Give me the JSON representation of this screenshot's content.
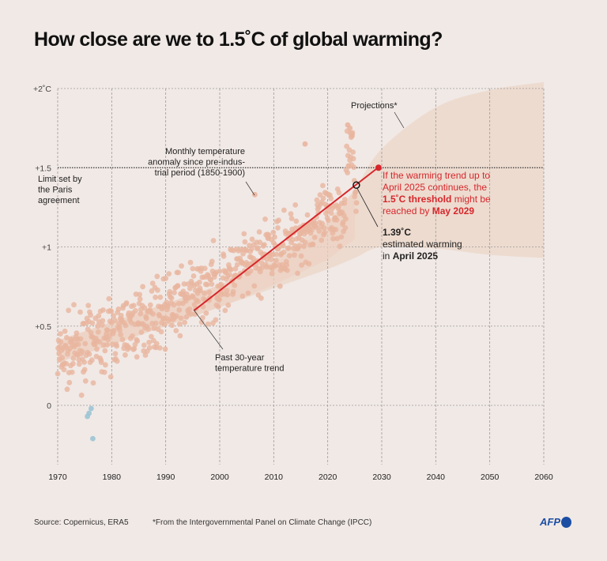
{
  "title": "How close are we to 1.5˚C of global warming?",
  "colors": {
    "background": "#f1e9e6",
    "dot_warm": "#e9b59f",
    "dot_cool": "#9cc4d4",
    "trend_band": "#ecd2c2",
    "projection_band": "#ecdacd",
    "trend_line": "#d7262b",
    "accent_text": "#d7262b",
    "grid": "#9a9a9a",
    "afp_blue": "#1b4ea3"
  },
  "chart_data": {
    "type": "scatter",
    "title": "How close are we to 1.5˚C of global warming?",
    "xlabel": "",
    "ylabel": "",
    "xlim": [
      1970,
      2060
    ],
    "ylim": [
      -0.4,
      2.0
    ],
    "x_ticks": [
      1970,
      1980,
      1990,
      2000,
      2010,
      2020,
      2030,
      2040,
      2050,
      2060
    ],
    "x_tick_labels": [
      "1970",
      "1980",
      "1990",
      "2000",
      "2010",
      "2020",
      "2030",
      "2040",
      "2050",
      "2060"
    ],
    "y_ticks": [
      0,
      0.5,
      1,
      1.5,
      2
    ],
    "y_tick_labels": [
      "0",
      "+0.5",
      "+1",
      "+1.5",
      "+2˚C"
    ],
    "grid": true,
    "threshold": {
      "value": 1.5,
      "label": "Limit set by the Paris agreement"
    },
    "series": [
      {
        "name": "Monthly temperature anomaly since pre-industrial period (1850-1900)",
        "kind": "scatter",
        "note": "Monthly points 1970 – April 2025; anomaly trend rises from ~0.3 (1970) to ~1.3 (2023) with large scatter; 2023-2024 peaks ~1.75; a few values below 0 around 1976 (min ~ -0.2)",
        "trend_start": [
          1970,
          0.3
        ],
        "trend_end": [
          2025.3,
          1.3
        ],
        "spread": 0.17,
        "highlights": [
          {
            "x": 1976.5,
            "y": -0.21
          },
          {
            "x": 1975.8,
            "y": -0.05
          },
          {
            "x": 1976.2,
            "y": -0.02
          },
          {
            "x": 1975.5,
            "y": -0.07
          },
          {
            "x": 2006.5,
            "y": 1.33
          },
          {
            "x": 2015.8,
            "y": 1.65
          },
          {
            "x": 2023.7,
            "y": 1.77
          },
          {
            "x": 2024.1,
            "y": 1.75
          },
          {
            "x": 2024.5,
            "y": 1.7
          }
        ]
      },
      {
        "name": "Past 30-year temperature trend",
        "kind": "line",
        "x": [
          1995.3,
          2029.3
        ],
        "y": [
          0.6,
          1.5
        ]
      },
      {
        "name": "Projections* (IPCC band)",
        "kind": "band",
        "x": [
          1970,
          1980,
          1990,
          2000,
          2010,
          2020,
          2025,
          2030,
          2040,
          2050,
          2060
        ],
        "lower": [
          0.27,
          0.38,
          0.5,
          0.62,
          0.74,
          0.86,
          0.93,
          1.0,
          0.99,
          0.95,
          0.93
        ],
        "upper": [
          0.41,
          0.52,
          0.64,
          0.76,
          0.9,
          1.14,
          1.36,
          1.62,
          1.88,
          1.99,
          2.04
        ]
      }
    ],
    "markers": [
      {
        "name": "April 2025 estimate",
        "x": 2025.3,
        "y": 1.39,
        "style": "open-circle"
      },
      {
        "name": "1.5˚C crossing",
        "x": 2029.4,
        "y": 1.5,
        "style": "filled-red"
      }
    ]
  },
  "annotations": {
    "monthly": [
      "Monthly temperature",
      "anomaly since pre-indus-",
      "trial period (1850-1900)"
    ],
    "projections": "Projections*",
    "paris": [
      "Limit set by",
      "the Paris",
      "agreement"
    ],
    "trend": [
      "Past 30-year",
      "temperature trend"
    ],
    "threshold_lines": [
      [
        {
          "t": "If the warming trend up to",
          "b": false
        }
      ],
      [
        {
          "t": "April 2025 continues, the",
          "b": false
        }
      ],
      [
        {
          "t": "1.5˚C threshold",
          "b": true
        },
        {
          "t": " might be",
          "b": false
        }
      ],
      [
        {
          "t": "reached by ",
          "b": false
        },
        {
          "t": "May 2029",
          "b": true
        }
      ]
    ],
    "estimate_value": "1.39˚C",
    "estimate_line2": "estimated warming",
    "estimate_line3_pre": "in ",
    "estimate_line3_bold": "April 2025"
  },
  "footer": {
    "source": "Source: Copernicus, ERA5",
    "note": "*From the Intergovernmental Panel on Climate Change (IPCC)",
    "logo_text": "AFP"
  }
}
